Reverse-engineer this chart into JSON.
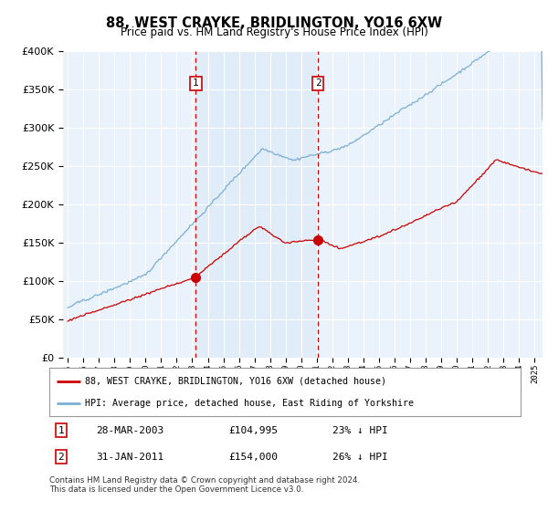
{
  "title": "88, WEST CRAYKE, BRIDLINGTON, YO16 6XW",
  "subtitle": "Price paid vs. HM Land Registry's House Price Index (HPI)",
  "legend_line1": "88, WEST CRAYKE, BRIDLINGTON, YO16 6XW (detached house)",
  "legend_line2": "HPI: Average price, detached house, East Riding of Yorkshire",
  "transaction1_date": "28-MAR-2003",
  "transaction1_price": "£104,995",
  "transaction1_hpi": "23% ↓ HPI",
  "transaction2_date": "31-JAN-2011",
  "transaction2_price": "£154,000",
  "transaction2_hpi": "26% ↓ HPI",
  "footer": "Contains HM Land Registry data © Crown copyright and database right 2024.\nThis data is licensed under the Open Government Licence v3.0.",
  "hpi_color": "#7bafd4",
  "hpi_shade_color": "#ddeaf7",
  "price_color": "#cc0000",
  "marker_color": "#cc0000",
  "vline_color": "#cc0000",
  "background_plot": "#eaf2fb",
  "ylim": [
    0,
    400000
  ],
  "yticks": [
    0,
    50000,
    100000,
    150000,
    200000,
    250000,
    300000,
    350000,
    400000
  ],
  "xlim_start": 1994.7,
  "xlim_end": 2025.5,
  "transaction1_x": 2003.23,
  "transaction2_x": 2011.08,
  "transaction1_y": 104995,
  "transaction2_y": 154000
}
